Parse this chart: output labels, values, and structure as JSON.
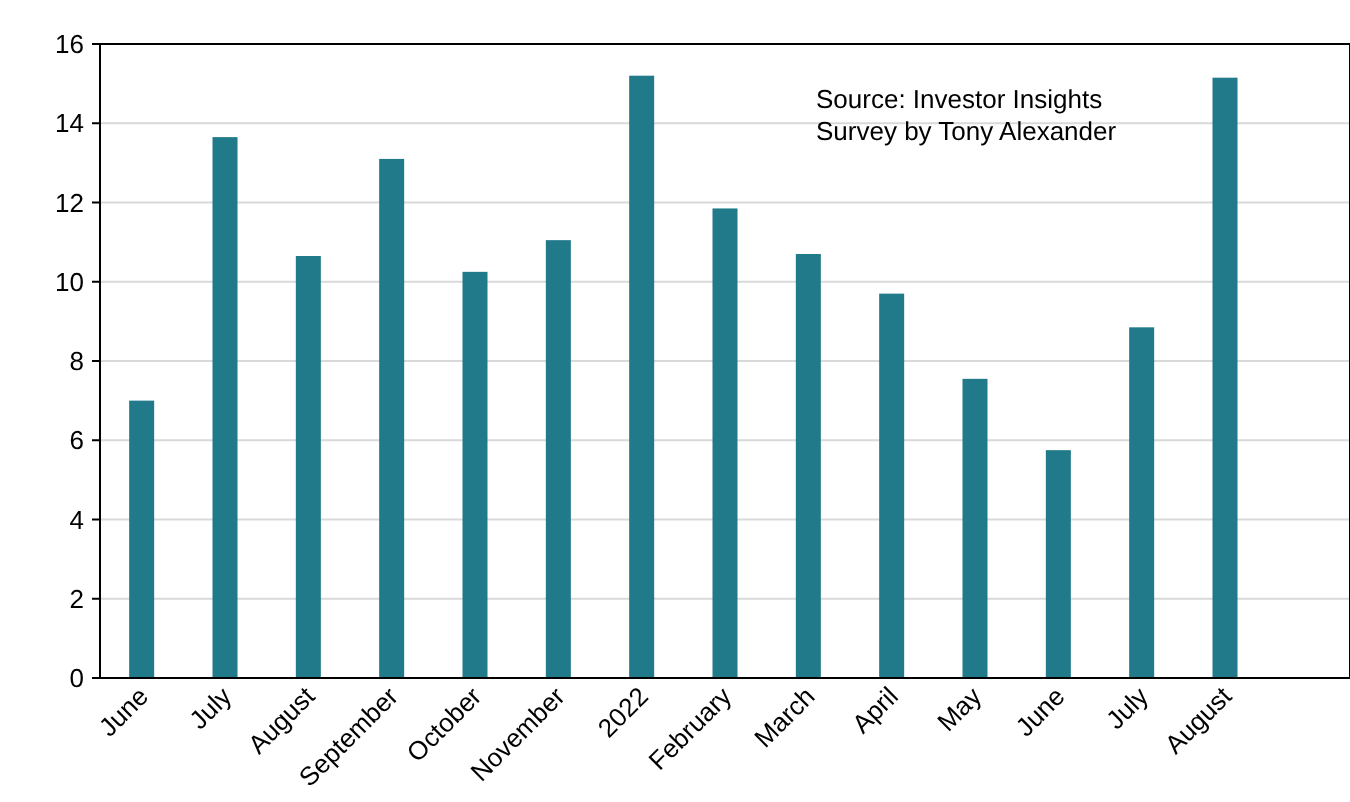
{
  "chart_data": {
    "type": "bar",
    "categories": [
      "June",
      "July",
      "August",
      "September",
      "October",
      "November",
      "2022",
      "February",
      "March",
      "April",
      "May",
      "June",
      "July",
      "August",
      null
    ],
    "values": [
      7.0,
      13.65,
      10.65,
      13.1,
      10.25,
      11.05,
      15.2,
      11.85,
      10.7,
      9.7,
      7.55,
      5.75,
      8.85,
      15.15,
      null
    ],
    "color": "#217a8a",
    "ylim": [
      0,
      16
    ],
    "yticks": [
      0,
      2,
      4,
      6,
      8,
      10,
      12,
      14,
      16
    ],
    "grid": "y",
    "annotations": [
      "Source: Investor Insights Survey by Tony Alexander"
    ]
  }
}
